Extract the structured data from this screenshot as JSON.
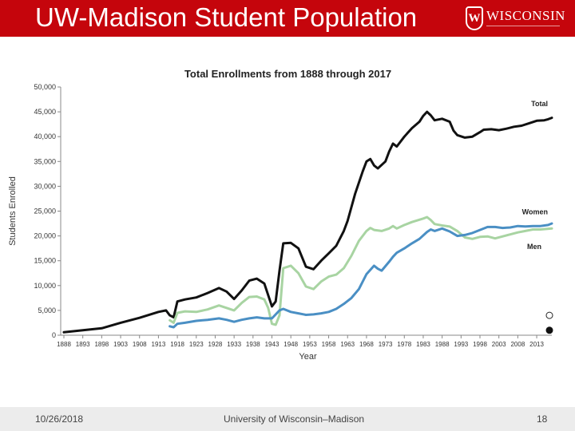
{
  "slide": {
    "title": "UW-Madison Student Population",
    "logo_text": "WISCONSIN",
    "logo_crest": "W",
    "footer_date": "10/26/2018",
    "footer_center": "University of Wisconsin–Madison",
    "page_number": "18"
  },
  "colors": {
    "header": "#c5050c",
    "total": "#111111",
    "women": "#a8d4a2",
    "men": "#4a8fc4"
  },
  "chart_data": {
    "type": "line",
    "title": "Total Enrollments from 1888 through 2017",
    "xlabel": "Year",
    "ylabel": "Students Enrolled",
    "xlim": [
      1888,
      2017
    ],
    "ylim": [
      0,
      50000
    ],
    "yticks": [
      0,
      5000,
      10000,
      15000,
      20000,
      25000,
      30000,
      35000,
      40000,
      45000,
      50000
    ],
    "ytick_labels": [
      "0",
      "5,000",
      "10,000",
      "15,000",
      "20,000",
      "25,000",
      "30,000",
      "35,000",
      "40,000",
      "45,000",
      "50,000"
    ],
    "xticks": [
      1888,
      1893,
      1898,
      1903,
      1908,
      1913,
      1918,
      1923,
      1928,
      1933,
      1938,
      1943,
      1948,
      1953,
      1958,
      1963,
      1968,
      1973,
      1978,
      1983,
      1988,
      1993,
      1998,
      2003,
      2008,
      2013
    ],
    "grid": false,
    "legend": "inline labels at right end",
    "series": [
      {
        "name": "Total",
        "color": "#111111",
        "points": [
          [
            1888,
            600
          ],
          [
            1893,
            1000
          ],
          [
            1898,
            1400
          ],
          [
            1903,
            2500
          ],
          [
            1908,
            3500
          ],
          [
            1913,
            4700
          ],
          [
            1915,
            5000
          ],
          [
            1916,
            4000
          ],
          [
            1917,
            3600
          ],
          [
            1918,
            6800
          ],
          [
            1920,
            7200
          ],
          [
            1923,
            7600
          ],
          [
            1926,
            8500
          ],
          [
            1929,
            9500
          ],
          [
            1931,
            8800
          ],
          [
            1933,
            7300
          ],
          [
            1935,
            9000
          ],
          [
            1937,
            11000
          ],
          [
            1939,
            11400
          ],
          [
            1941,
            10400
          ],
          [
            1943,
            5800
          ],
          [
            1944,
            6800
          ],
          [
            1945,
            13000
          ],
          [
            1946,
            18500
          ],
          [
            1948,
            18600
          ],
          [
            1950,
            17500
          ],
          [
            1952,
            13800
          ],
          [
            1954,
            13300
          ],
          [
            1956,
            15000
          ],
          [
            1958,
            16500
          ],
          [
            1960,
            18000
          ],
          [
            1962,
            21000
          ],
          [
            1963,
            23000
          ],
          [
            1965,
            28500
          ],
          [
            1967,
            33000
          ],
          [
            1968,
            35000
          ],
          [
            1969,
            35500
          ],
          [
            1970,
            34200
          ],
          [
            1971,
            33600
          ],
          [
            1973,
            35000
          ],
          [
            1974,
            37000
          ],
          [
            1975,
            38600
          ],
          [
            1976,
            38000
          ],
          [
            1978,
            40000
          ],
          [
            1980,
            41700
          ],
          [
            1982,
            43000
          ],
          [
            1983,
            44200
          ],
          [
            1984,
            45000
          ],
          [
            1985,
            44300
          ],
          [
            1986,
            43300
          ],
          [
            1988,
            43600
          ],
          [
            1990,
            43000
          ],
          [
            1991,
            41200
          ],
          [
            1992,
            40300
          ],
          [
            1994,
            39800
          ],
          [
            1996,
            40000
          ],
          [
            1998,
            40900
          ],
          [
            1999,
            41400
          ],
          [
            2001,
            41500
          ],
          [
            2003,
            41300
          ],
          [
            2005,
            41600
          ],
          [
            2007,
            42000
          ],
          [
            2009,
            42200
          ],
          [
            2011,
            42700
          ],
          [
            2013,
            43200
          ],
          [
            2015,
            43300
          ],
          [
            2016,
            43500
          ],
          [
            2017,
            43800
          ]
        ]
      },
      {
        "name": "Women",
        "color": "#a8d4a2",
        "points": [
          [
            1916,
            3000
          ],
          [
            1917,
            2500
          ],
          [
            1918,
            4500
          ],
          [
            1920,
            4800
          ],
          [
            1923,
            4700
          ],
          [
            1926,
            5200
          ],
          [
            1929,
            6000
          ],
          [
            1931,
            5500
          ],
          [
            1933,
            5000
          ],
          [
            1935,
            6500
          ],
          [
            1937,
            7700
          ],
          [
            1939,
            7800
          ],
          [
            1941,
            7200
          ],
          [
            1942,
            5500
          ],
          [
            1943,
            2300
          ],
          [
            1944,
            2100
          ],
          [
            1945,
            4000
          ],
          [
            1946,
            13500
          ],
          [
            1948,
            14000
          ],
          [
            1950,
            12500
          ],
          [
            1952,
            9800
          ],
          [
            1954,
            9300
          ],
          [
            1956,
            10800
          ],
          [
            1958,
            11800
          ],
          [
            1960,
            12200
          ],
          [
            1962,
            13500
          ],
          [
            1964,
            16000
          ],
          [
            1966,
            19000
          ],
          [
            1968,
            21000
          ],
          [
            1969,
            21600
          ],
          [
            1970,
            21200
          ],
          [
            1972,
            21000
          ],
          [
            1974,
            21500
          ],
          [
            1975,
            22000
          ],
          [
            1976,
            21500
          ],
          [
            1978,
            22200
          ],
          [
            1980,
            22800
          ],
          [
            1983,
            23500
          ],
          [
            1984,
            23800
          ],
          [
            1985,
            23200
          ],
          [
            1986,
            22400
          ],
          [
            1988,
            22100
          ],
          [
            1990,
            21900
          ],
          [
            1992,
            21000
          ],
          [
            1994,
            19700
          ],
          [
            1996,
            19400
          ],
          [
            1998,
            19800
          ],
          [
            2000,
            19900
          ],
          [
            2002,
            19500
          ],
          [
            2004,
            19900
          ],
          [
            2006,
            20300
          ],
          [
            2008,
            20700
          ],
          [
            2010,
            21000
          ],
          [
            2012,
            21300
          ],
          [
            2014,
            21300
          ],
          [
            2017,
            21500
          ]
        ]
      },
      {
        "name": "Men",
        "color": "#4a8fc4",
        "points": [
          [
            1916,
            1800
          ],
          [
            1917,
            1600
          ],
          [
            1918,
            2300
          ],
          [
            1920,
            2500
          ],
          [
            1923,
            2900
          ],
          [
            1926,
            3100
          ],
          [
            1929,
            3400
          ],
          [
            1931,
            3100
          ],
          [
            1933,
            2700
          ],
          [
            1935,
            3100
          ],
          [
            1937,
            3400
          ],
          [
            1939,
            3600
          ],
          [
            1941,
            3400
          ],
          [
            1943,
            3400
          ],
          [
            1945,
            5000
          ],
          [
            1946,
            5300
          ],
          [
            1948,
            4700
          ],
          [
            1950,
            4400
          ],
          [
            1952,
            4100
          ],
          [
            1954,
            4200
          ],
          [
            1956,
            4400
          ],
          [
            1958,
            4700
          ],
          [
            1960,
            5300
          ],
          [
            1962,
            6300
          ],
          [
            1964,
            7500
          ],
          [
            1966,
            9300
          ],
          [
            1968,
            12300
          ],
          [
            1970,
            14000
          ],
          [
            1971,
            13400
          ],
          [
            1972,
            13000
          ],
          [
            1974,
            14800
          ],
          [
            1975,
            15800
          ],
          [
            1976,
            16600
          ],
          [
            1978,
            17500
          ],
          [
            1980,
            18500
          ],
          [
            1982,
            19400
          ],
          [
            1984,
            20800
          ],
          [
            1985,
            21300
          ],
          [
            1986,
            21000
          ],
          [
            1988,
            21500
          ],
          [
            1990,
            20900
          ],
          [
            1992,
            20000
          ],
          [
            1994,
            20200
          ],
          [
            1996,
            20600
          ],
          [
            1998,
            21200
          ],
          [
            2000,
            21800
          ],
          [
            2002,
            21800
          ],
          [
            2004,
            21600
          ],
          [
            2006,
            21700
          ],
          [
            2008,
            22000
          ],
          [
            2010,
            21900
          ],
          [
            2012,
            22000
          ],
          [
            2014,
            22000
          ],
          [
            2016,
            22200
          ],
          [
            2017,
            22500
          ]
        ]
      }
    ]
  }
}
